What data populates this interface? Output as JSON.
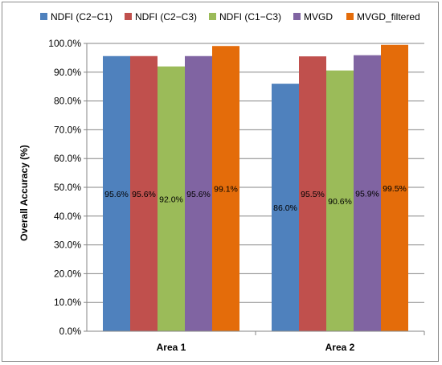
{
  "chart_data": {
    "type": "bar",
    "ylabel": "Overall Accuracy (%)",
    "categories": [
      "Area 1",
      "Area 2"
    ],
    "ylim": [
      0,
      100
    ],
    "ytick_step": 10,
    "ytick_labels": [
      "0.0%",
      "10.0%",
      "20.0%",
      "30.0%",
      "40.0%",
      "50.0%",
      "60.0%",
      "70.0%",
      "80.0%",
      "90.0%",
      "100.0%"
    ],
    "grid": true,
    "legend_position": "top",
    "series": [
      {
        "name": "NDFI (C2−C1)",
        "color": "#4f81bd",
        "values": [
          95.6,
          86.0
        ],
        "labels": [
          "95.6%",
          "86.0%"
        ]
      },
      {
        "name": "NDFI (C2−C3)",
        "color": "#c0504d",
        "values": [
          95.6,
          95.5
        ],
        "labels": [
          "95.6%",
          "95.5%"
        ]
      },
      {
        "name": "NDFI (C1−C3)",
        "color": "#9bbb59",
        "values": [
          92.0,
          90.6
        ],
        "labels": [
          "92.0%",
          "90.6%"
        ]
      },
      {
        "name": "MVGD",
        "color": "#8064a2",
        "values": [
          95.6,
          95.9
        ],
        "labels": [
          "95.6%",
          "95.9%"
        ]
      },
      {
        "name": "MVGD_filtered",
        "color": "#e46c0a",
        "values": [
          99.1,
          99.5
        ],
        "labels": [
          "99.1%",
          "99.5%"
        ]
      }
    ]
  }
}
